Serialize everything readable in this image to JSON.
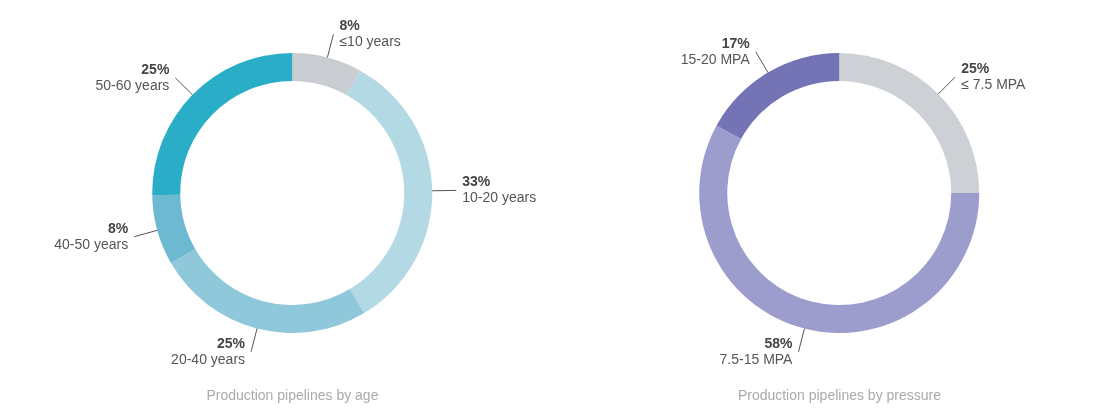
{
  "chart_data": [
    {
      "type": "donut",
      "title": "Production pipelines by age",
      "categories": [
        "≤10 years",
        "10-20 years",
        "20-40 years",
        "40-50 years",
        "50-60 years"
      ],
      "values": [
        8,
        33,
        25,
        8,
        25
      ],
      "value_labels": [
        "8%",
        "33%",
        "25%",
        "8%",
        "25%"
      ],
      "colors": [
        "#c9ccd1",
        "#b3d9e4",
        "#8ec8da",
        "#6cb9d1",
        "#2aaec8"
      ]
    },
    {
      "type": "donut",
      "title": "Production pipelines by pressure",
      "categories": [
        "≤ 7.5 MPA",
        "7.5-15 MPA",
        "15-20 MPA"
      ],
      "values": [
        25,
        58,
        17
      ],
      "value_labels": [
        "25%",
        "58%",
        "17%"
      ],
      "colors": [
        "#cdd0d5",
        "#9c9ccd",
        "#7373b6"
      ]
    }
  ]
}
